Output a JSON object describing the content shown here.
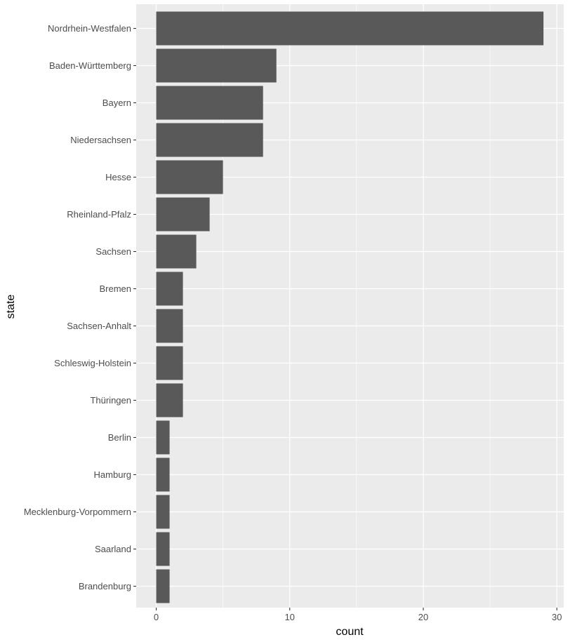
{
  "chart_data": {
    "type": "bar",
    "orientation": "horizontal",
    "title": "",
    "xlabel": "count",
    "ylabel": "state",
    "xlim": [
      0,
      30
    ],
    "x_ticks": [
      0,
      10,
      20,
      30
    ],
    "grid": true,
    "categories": [
      "Nordrhein-Westfalen",
      "Baden-Württemberg",
      "Bayern",
      "Niedersachsen",
      "Hesse",
      "Rheinland-Pfalz",
      "Sachsen",
      "Bremen",
      "Sachsen-Anhalt",
      "Schleswig-Holstein",
      "Thüringen",
      "Berlin",
      "Hamburg",
      "Mecklenburg-Vorpommern",
      "Saarland",
      "Brandenburg"
    ],
    "values": [
      29,
      9,
      8,
      8,
      5,
      4,
      3,
      2,
      2,
      2,
      2,
      1,
      1,
      1,
      1,
      1
    ],
    "colors": {
      "panel": "#ebebeb",
      "grid": "#ffffff",
      "bar": "#595959",
      "tick": "#333333"
    }
  }
}
